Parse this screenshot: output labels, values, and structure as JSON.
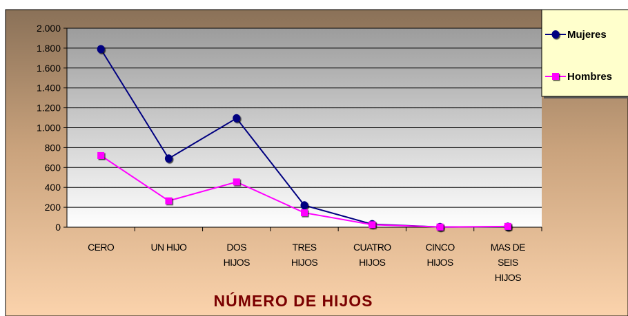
{
  "chart_data": {
    "type": "line",
    "x_label": "NÚMERO DE HIJOS",
    "categories": [
      "CERO",
      "UN HIJO",
      "DOS HIJOS",
      "TRES HIJOS",
      "CUATRO HIJOS",
      "CINCO HIJOS",
      "MAS DE SEIS HIJOS"
    ],
    "series": [
      {
        "name": "Mujeres",
        "color": "#000080",
        "marker": "circle",
        "values": [
          1790,
          690,
          1095,
          220,
          30,
          2,
          5
        ]
      },
      {
        "name": "Hombres",
        "color": "#ff00ff",
        "marker": "square",
        "values": [
          720,
          265,
          455,
          145,
          25,
          2,
          8
        ]
      }
    ],
    "ylim": [
      0,
      2000
    ],
    "yticks": [
      0,
      200,
      400,
      600,
      800,
      {
        "value": 1000,
        "label": "1.000"
      },
      {
        "value": 1200,
        "label": "1.200"
      },
      {
        "value": 1400,
        "label": "1.400"
      },
      {
        "value": 1600,
        "label": "1.600"
      },
      {
        "value": 1800,
        "label": "1.800"
      },
      {
        "value": 2000,
        "label": "2.000"
      }
    ],
    "grid": true,
    "legend": "right"
  }
}
